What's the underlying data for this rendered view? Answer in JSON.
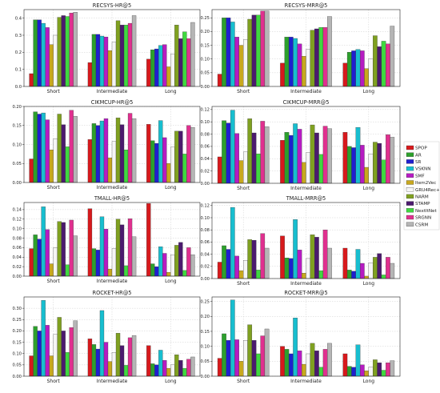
{
  "methods": [
    "SPOP",
    "AR",
    "SR",
    "VSKNN",
    "SMF",
    "Item2Vec",
    "GRU4Rec+",
    "NARM",
    "STAMP",
    "NextItNet",
    "SRGNN",
    "CSRM"
  ],
  "colors": [
    "#d7191c",
    "#2ca02c",
    "#1f1fcf",
    "#17becf",
    "#b61bc2",
    "#c8a81e",
    "#f5f5f5",
    "#7fa020",
    "#4b1a6e",
    "#3fd83f",
    "#e0308f",
    "#b5b5b5"
  ],
  "chart_data": [
    {
      "type": "bar",
      "title": "RECSYS-HR@5",
      "categories": [
        "Short",
        "Intermediate",
        "Long"
      ],
      "ylim": [
        0,
        0.45
      ],
      "yticks": [
        0.0,
        0.1,
        0.2,
        0.3,
        0.4
      ],
      "ytick_labels": [
        "0.0",
        "0.1",
        "0.2",
        "0.3",
        "0.4"
      ],
      "grid": true,
      "series": [
        {
          "name": "SPOP",
          "values": [
            0.075,
            0.14,
            0.16
          ]
        },
        {
          "name": "AR",
          "values": [
            0.39,
            0.305,
            0.215
          ]
        },
        {
          "name": "SR",
          "values": [
            0.39,
            0.305,
            0.22
          ]
        },
        {
          "name": "VSKNN",
          "values": [
            0.37,
            0.295,
            0.24
          ]
        },
        {
          "name": "SMF",
          "values": [
            0.345,
            0.29,
            0.245
          ]
        },
        {
          "name": "Item2Vec",
          "values": [
            0.245,
            0.21,
            0.115
          ]
        },
        {
          "name": "GRU4Rec+",
          "values": [
            0.3,
            0.26,
            0.19
          ]
        },
        {
          "name": "NARM",
          "values": [
            0.405,
            0.385,
            0.36
          ]
        },
        {
          "name": "STAMP",
          "values": [
            0.415,
            0.36,
            0.28
          ]
        },
        {
          "name": "NextItNet",
          "values": [
            0.41,
            0.36,
            0.32
          ]
        },
        {
          "name": "SRGNN",
          "values": [
            0.43,
            0.37,
            0.28
          ]
        },
        {
          "name": "CSRM",
          "values": [
            0.435,
            0.415,
            0.375
          ]
        }
      ]
    },
    {
      "type": "bar",
      "title": "RECSYS-MRR@5",
      "categories": [
        "Short",
        "Intermediate",
        "Long"
      ],
      "ylim": [
        0,
        0.28
      ],
      "yticks": [
        0.0,
        0.05,
        0.1,
        0.15,
        0.2,
        0.25
      ],
      "ytick_labels": [
        "0.00",
        "0.05",
        "0.10",
        "0.15",
        "0.20",
        "0.25"
      ],
      "grid": true,
      "series": [
        {
          "name": "SPOP",
          "values": [
            0.045,
            0.085,
            0.085
          ]
        },
        {
          "name": "AR",
          "values": [
            0.25,
            0.18,
            0.125
          ]
        },
        {
          "name": "SR",
          "values": [
            0.25,
            0.18,
            0.13
          ]
        },
        {
          "name": "VSKNN",
          "values": [
            0.235,
            0.175,
            0.135
          ]
        },
        {
          "name": "SMF",
          "values": [
            0.18,
            0.155,
            0.13
          ]
        },
        {
          "name": "Item2Vec",
          "values": [
            0.15,
            0.11,
            0.065
          ]
        },
        {
          "name": "GRU4Rec+",
          "values": [
            0.17,
            0.135,
            0.1
          ]
        },
        {
          "name": "NARM",
          "values": [
            0.245,
            0.205,
            0.185
          ]
        },
        {
          "name": "STAMP",
          "values": [
            0.26,
            0.21,
            0.145
          ]
        },
        {
          "name": "NextItNet",
          "values": [
            0.26,
            0.215,
            0.165
          ]
        },
        {
          "name": "SRGNN",
          "values": [
            0.275,
            0.215,
            0.155
          ]
        },
        {
          "name": "CSRM",
          "values": [
            0.275,
            0.255,
            0.22
          ]
        }
      ]
    },
    {
      "type": "bar",
      "title": "CIKMCUP-HR@5",
      "categories": [
        "Short",
        "Intermediate",
        "Long"
      ],
      "ylim": [
        0,
        0.2
      ],
      "yticks": [
        0.0,
        0.05,
        0.1,
        0.15,
        0.2
      ],
      "ytick_labels": [
        "0.00",
        "0.05",
        "0.10",
        "0.15",
        "0.20"
      ],
      "grid": true,
      "series": [
        {
          "name": "SPOP",
          "values": [
            0.062,
            0.113,
            0.153
          ]
        },
        {
          "name": "AR",
          "values": [
            0.186,
            0.155,
            0.11
          ]
        },
        {
          "name": "SR",
          "values": [
            0.18,
            0.15,
            0.103
          ]
        },
        {
          "name": "VSKNN",
          "values": [
            0.183,
            0.162,
            0.163
          ]
        },
        {
          "name": "SMF",
          "values": [
            0.165,
            0.168,
            0.118
          ]
        },
        {
          "name": "Item2Vec",
          "values": [
            0.086,
            0.065,
            0.05
          ]
        },
        {
          "name": "GRU4Rec+",
          "values": [
            0.115,
            0.108,
            0.093
          ]
        },
        {
          "name": "NARM",
          "values": [
            0.18,
            0.17,
            0.135
          ]
        },
        {
          "name": "STAMP",
          "values": [
            0.152,
            0.152,
            0.135
          ]
        },
        {
          "name": "NextItNet",
          "values": [
            0.094,
            0.086,
            0.075
          ]
        },
        {
          "name": "SRGNN",
          "values": [
            0.19,
            0.182,
            0.15
          ]
        },
        {
          "name": "CSRM",
          "values": [
            0.174,
            0.168,
            0.145
          ]
        }
      ]
    },
    {
      "type": "bar",
      "title": "CIKMCUP-MRR@5",
      "categories": [
        "Short",
        "Intermediate",
        "Long"
      ],
      "ylim": [
        0,
        0.125
      ],
      "yticks": [
        0.0,
        0.02,
        0.04,
        0.06,
        0.08,
        0.1,
        0.12
      ],
      "ytick_labels": [
        "0.00",
        "0.02",
        "0.04",
        "0.06",
        "0.08",
        "0.10",
        "0.12"
      ],
      "grid": true,
      "series": [
        {
          "name": "SPOP",
          "values": [
            0.043,
            0.07,
            0.083
          ]
        },
        {
          "name": "AR",
          "values": [
            0.102,
            0.083,
            0.06
          ]
        },
        {
          "name": "SR",
          "values": [
            0.098,
            0.078,
            0.058
          ]
        },
        {
          "name": "VSKNN",
          "values": [
            0.119,
            0.097,
            0.091
          ]
        },
        {
          "name": "SMF",
          "values": [
            0.081,
            0.088,
            0.062
          ]
        },
        {
          "name": "Item2Vec",
          "values": [
            0.037,
            0.034,
            0.026
          ]
        },
        {
          "name": "GRU4Rec+",
          "values": [
            0.051,
            0.05,
            0.048
          ]
        },
        {
          "name": "NARM",
          "values": [
            0.105,
            0.095,
            0.067
          ]
        },
        {
          "name": "STAMP",
          "values": [
            0.082,
            0.082,
            0.065
          ]
        },
        {
          "name": "NextItNet",
          "values": [
            0.048,
            0.047,
            0.038
          ]
        },
        {
          "name": "SRGNN",
          "values": [
            0.101,
            0.093,
            0.079
          ]
        },
        {
          "name": "CSRM",
          "values": [
            0.092,
            0.089,
            0.075
          ]
        }
      ]
    },
    {
      "type": "bar",
      "title": "TMALL-HR@5",
      "categories": [
        "Short",
        "Intermediate",
        "Long"
      ],
      "ylim": [
        0,
        0.155
      ],
      "yticks": [
        0.0,
        0.02,
        0.04,
        0.06,
        0.08,
        0.1,
        0.12,
        0.14
      ],
      "ytick_labels": [
        "0.00",
        "0.02",
        "0.04",
        "0.06",
        "0.08",
        "0.10",
        "0.12",
        "0.14"
      ],
      "grid": true,
      "series": [
        {
          "name": "SPOP",
          "values": [
            0.058,
            0.142,
            0.153
          ]
        },
        {
          "name": "AR",
          "values": [
            0.087,
            0.058,
            0.026
          ]
        },
        {
          "name": "SR",
          "values": [
            0.078,
            0.055,
            0.02
          ]
        },
        {
          "name": "VSKNN",
          "values": [
            0.146,
            0.125,
            0.062
          ]
        },
        {
          "name": "SMF",
          "values": [
            0.098,
            0.099,
            0.048
          ]
        },
        {
          "name": "Item2Vec",
          "values": [
            0.026,
            0.015,
            0.008
          ]
        },
        {
          "name": "GRU4Rec+",
          "values": [
            0.06,
            0.058,
            0.045
          ]
        },
        {
          "name": "NARM",
          "values": [
            0.115,
            0.12,
            0.065
          ]
        },
        {
          "name": "STAMP",
          "values": [
            0.113,
            0.108,
            0.071
          ]
        },
        {
          "name": "NextItNet",
          "values": [
            0.024,
            0.022,
            0.012
          ]
        },
        {
          "name": "SRGNN",
          "values": [
            0.118,
            0.121,
            0.06
          ]
        },
        {
          "name": "CSRM",
          "values": [
            0.085,
            0.083,
            0.045
          ]
        }
      ]
    },
    {
      "type": "bar",
      "title": "TMALL-MRR@5",
      "categories": [
        "Short",
        "Intermediate",
        "Long"
      ],
      "ylim": [
        0,
        0.125
      ],
      "yticks": [
        0.0,
        0.02,
        0.04,
        0.06,
        0.08,
        0.1,
        0.12
      ],
      "ytick_labels": [
        "0.00",
        "0.02",
        "0.04",
        "0.06",
        "0.08",
        "0.10",
        "0.12"
      ],
      "grid": true,
      "series": [
        {
          "name": "SPOP",
          "values": [
            0.027,
            0.07,
            0.05
          ]
        },
        {
          "name": "AR",
          "values": [
            0.054,
            0.034,
            0.014
          ]
        },
        {
          "name": "SR",
          "values": [
            0.048,
            0.033,
            0.012
          ]
        },
        {
          "name": "VSKNN",
          "values": [
            0.117,
            0.097,
            0.048
          ]
        },
        {
          "name": "SMF",
          "values": [
            0.037,
            0.047,
            0.025
          ]
        },
        {
          "name": "Item2Vec",
          "values": [
            0.013,
            0.009,
            0.004
          ]
        },
        {
          "name": "GRU4Rec+",
          "values": [
            0.03,
            0.033,
            0.026
          ]
        },
        {
          "name": "NARM",
          "values": [
            0.064,
            0.072,
            0.035
          ]
        },
        {
          "name": "STAMP",
          "values": [
            0.063,
            0.068,
            0.041
          ]
        },
        {
          "name": "NextItNet",
          "values": [
            0.014,
            0.013,
            0.006
          ]
        },
        {
          "name": "SRGNN",
          "values": [
            0.074,
            0.08,
            0.035
          ]
        },
        {
          "name": "CSRM",
          "values": [
            0.05,
            0.05,
            0.025
          ]
        }
      ]
    },
    {
      "type": "bar",
      "title": "ROCKET-HR@5",
      "categories": [
        "Short",
        "Intermediate",
        "Long"
      ],
      "ylim": [
        0,
        0.35
      ],
      "yticks": [
        0.0,
        0.05,
        0.1,
        0.15,
        0.2,
        0.25,
        0.3
      ],
      "ytick_labels": [
        "0.00",
        "0.05",
        "0.10",
        "0.15",
        "0.20",
        "0.25",
        "0.30"
      ],
      "grid": true,
      "series": [
        {
          "name": "SPOP",
          "values": [
            0.09,
            0.165,
            0.135
          ]
        },
        {
          "name": "AR",
          "values": [
            0.22,
            0.14,
            0.055
          ]
        },
        {
          "name": "SR",
          "values": [
            0.2,
            0.12,
            0.05
          ]
        },
        {
          "name": "VSKNN",
          "values": [
            0.335,
            0.29,
            0.115
          ]
        },
        {
          "name": "SMF",
          "values": [
            0.225,
            0.15,
            0.07
          ]
        },
        {
          "name": "Item2Vec",
          "values": [
            0.09,
            0.065,
            0.035
          ]
        },
        {
          "name": "GRU4Rec+",
          "values": [
            0.185,
            0.105,
            0.05
          ]
        },
        {
          "name": "NARM",
          "values": [
            0.26,
            0.19,
            0.095
          ]
        },
        {
          "name": "STAMP",
          "values": [
            0.2,
            0.135,
            0.07
          ]
        },
        {
          "name": "NextItNet",
          "values": [
            0.105,
            0.048,
            0.035
          ]
        },
        {
          "name": "SRGNN",
          "values": [
            0.215,
            0.17,
            0.075
          ]
        },
        {
          "name": "CSRM",
          "values": [
            0.245,
            0.18,
            0.085
          ]
        }
      ]
    },
    {
      "type": "bar",
      "title": "ROCKET-MRR@5",
      "categories": [
        "Short",
        "Intermediate",
        "Long"
      ],
      "ylim": [
        0,
        0.265
      ],
      "yticks": [
        0.0,
        0.05,
        0.1,
        0.15,
        0.2,
        0.25
      ],
      "ytick_labels": [
        "0.00",
        "0.05",
        "0.10",
        "0.15",
        "0.20",
        "0.25"
      ],
      "grid": true,
      "series": [
        {
          "name": "SPOP",
          "values": [
            0.06,
            0.1,
            0.075
          ]
        },
        {
          "name": "AR",
          "values": [
            0.142,
            0.09,
            0.033
          ]
        },
        {
          "name": "SR",
          "values": [
            0.12,
            0.075,
            0.03
          ]
        },
        {
          "name": "VSKNN",
          "values": [
            0.255,
            0.195,
            0.105
          ]
        },
        {
          "name": "SMF",
          "values": [
            0.122,
            0.085,
            0.038
          ]
        },
        {
          "name": "Item2Vec",
          "values": [
            0.05,
            0.04,
            0.018
          ]
        },
        {
          "name": "GRU4Rec+",
          "values": [
            0.12,
            0.075,
            0.03
          ]
        },
        {
          "name": "NARM",
          "values": [
            0.172,
            0.11,
            0.055
          ]
        },
        {
          "name": "STAMP",
          "values": [
            0.12,
            0.085,
            0.045
          ]
        },
        {
          "name": "NextItNet",
          "values": [
            0.075,
            0.03,
            0.02
          ]
        },
        {
          "name": "SRGNN",
          "values": [
            0.135,
            0.09,
            0.045
          ]
        },
        {
          "name": "CSRM",
          "values": [
            0.158,
            0.11,
            0.052
          ]
        }
      ]
    }
  ]
}
